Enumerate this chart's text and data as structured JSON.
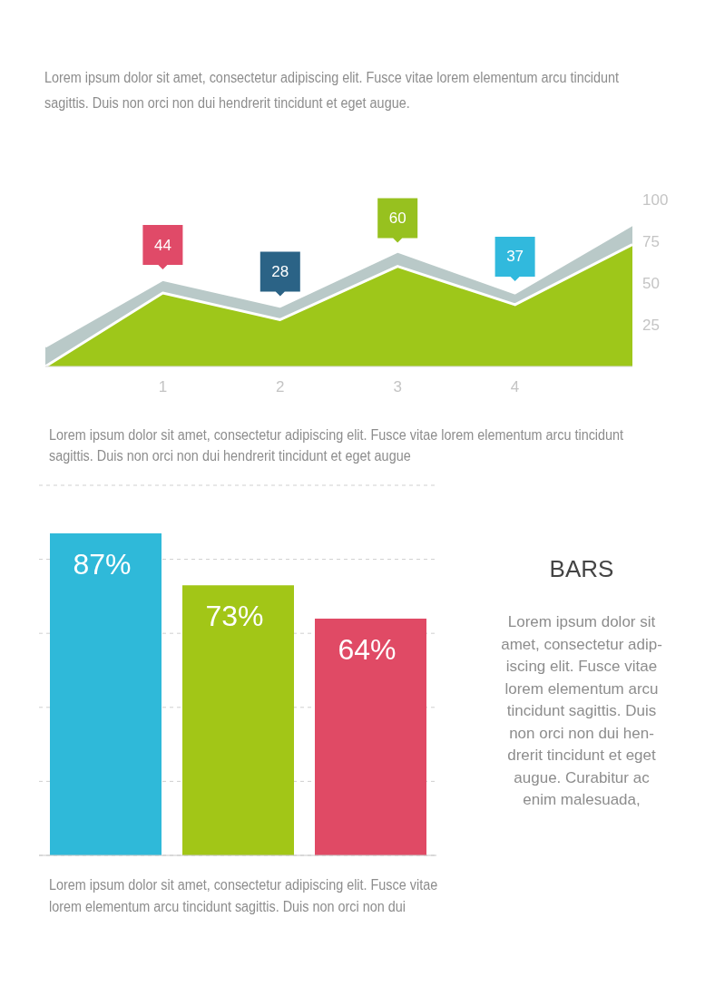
{
  "chart_data": [
    {
      "type": "area",
      "subtitle": "Lorem ipsum dolor sit amet, consectetur adipiscing elit. Fusce vitae lorem elementum arcu tincidunt sagittis. Duis non orci non dui hendrerit tincidunt et eget augue.",
      "x": [
        0,
        1,
        2,
        3,
        4,
        5
      ],
      "series": [
        {
          "color": "#b9c9c8",
          "values": [
            12,
            52,
            36,
            69,
            44,
            85
          ]
        },
        {
          "color": "#9ec71a",
          "values": [
            0,
            44,
            28,
            60,
            37,
            73
          ],
          "value_labels": [
            null,
            "44",
            "28",
            "60",
            "37",
            null
          ]
        }
      ],
      "xlim": [
        0,
        5
      ],
      "xticks": [
        1,
        2,
        3,
        4
      ],
      "ylim": [
        0,
        100
      ],
      "yticks": [
        25,
        50,
        75,
        100
      ]
    },
    {
      "type": "bar",
      "subtitle": "Lorem ipsum dolor sit amet, consectetur adipiscing elit. Fusce vitae lorem elementum arcu tincidunt sagittis. Duis non orci non dui hendrerit tincidunt et eget augue",
      "annotations": [
        "Lorem ipsum dolor sit amet, consectetur adipiscing elit. Fusce vitae lorem elementum arcu tincidunt sagittis. Duis non orci non dui"
      ],
      "categories": [
        null,
        null,
        null
      ],
      "values": [
        87,
        73,
        64
      ],
      "colors": [
        "#2fb9d9",
        "#a2c617",
        "#e04a65"
      ],
      "value_labels": [
        "87%",
        "73%",
        "64%"
      ],
      "grid": "y"
    },
    {
      "type": "other",
      "title": "BARS",
      "annotations": [
        "Lorem ipsum dolor sit\namet, consectetur adip-\niscing elit. Fusce vitae\nlorem elementum arcu\ntincidunt sagittis. Duis\nnon orci non dui hen-\ndrerit tincidunt et eget\naugue. Curabitur ac\nenim malesuada,"
      ]
    }
  ]
}
